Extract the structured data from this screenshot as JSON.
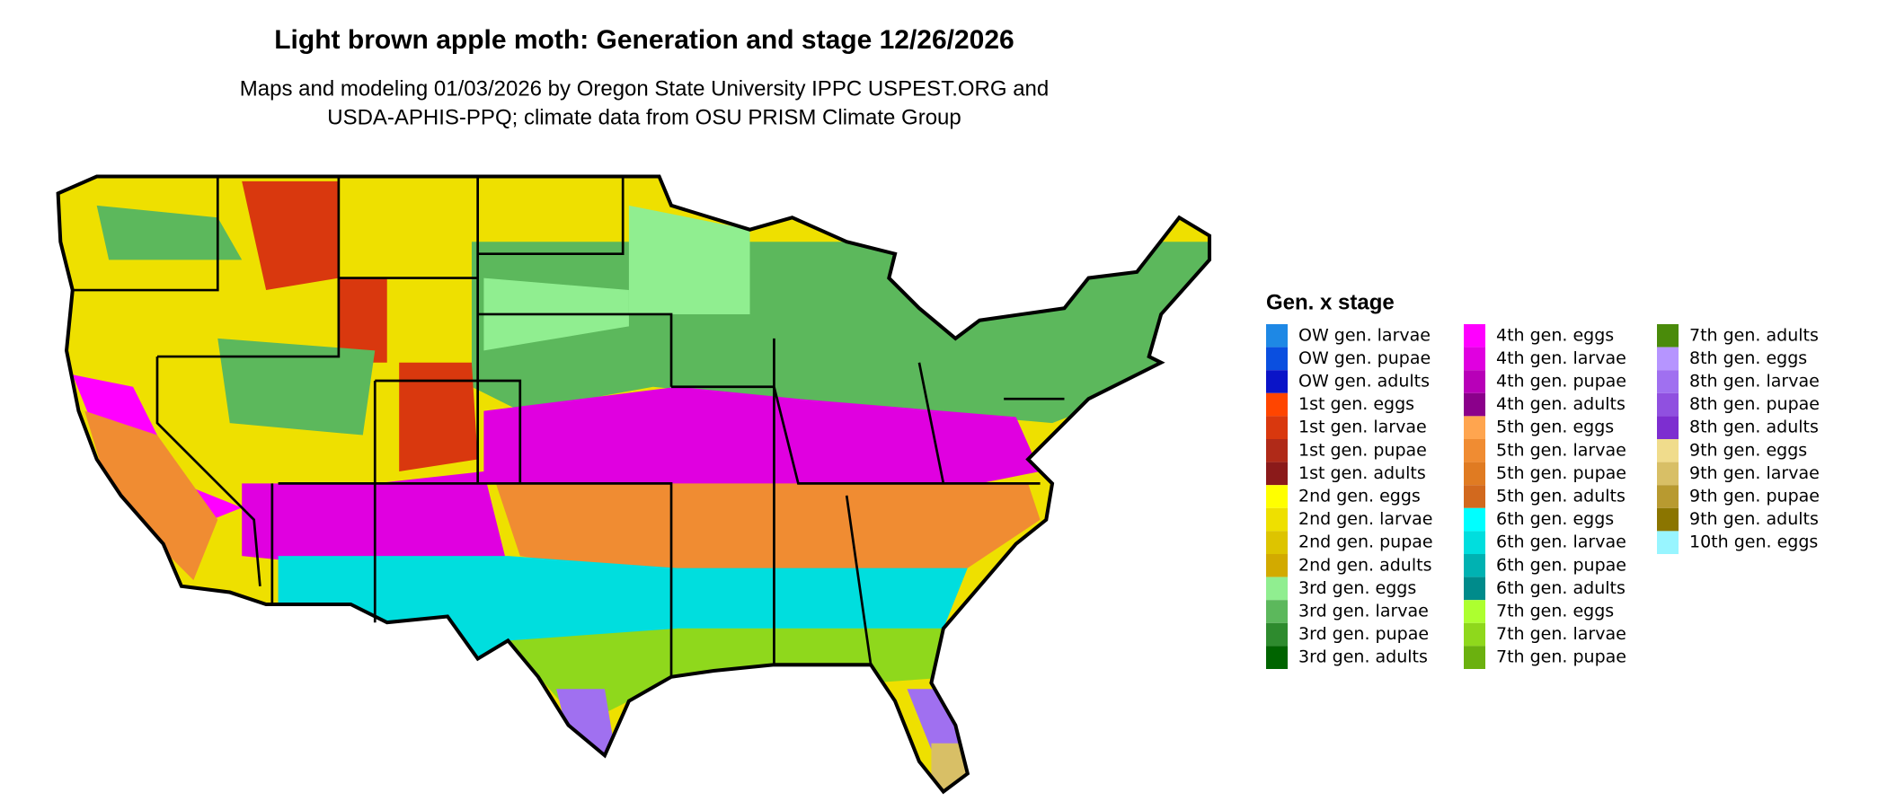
{
  "header": {
    "title": "Light brown apple moth: Generation and stage 12/26/2026",
    "subtitle": [
      "Maps and modeling 01/03/2026 by Oregon State University IPPC USPEST.ORG and",
      "USDA-APHIS-PPQ; climate data from OSU PRISM Climate Group"
    ]
  },
  "legend": {
    "title": "Gen. x stage",
    "items": [
      {
        "label": "OW gen. larvae",
        "color": "#1e88e5"
      },
      {
        "label": "OW gen. pupae",
        "color": "#0a4fe0"
      },
      {
        "label": "OW gen. adults",
        "color": "#0a14c8"
      },
      {
        "label": "1st gen. eggs",
        "color": "#ff4500"
      },
      {
        "label": "1st gen. larvae",
        "color": "#d9380e"
      },
      {
        "label": "1st gen. pupae",
        "color": "#b02a18"
      },
      {
        "label": "1st gen. adults",
        "color": "#8b1a1a"
      },
      {
        "label": "2nd gen. eggs",
        "color": "#ffff00"
      },
      {
        "label": "2nd gen. larvae",
        "color": "#eee000"
      },
      {
        "label": "2nd gen. pupae",
        "color": "#ddc400"
      },
      {
        "label": "2nd gen. adults",
        "color": "#d2aa00"
      },
      {
        "label": "3rd gen. eggs",
        "color": "#90ee90"
      },
      {
        "label": "3rd gen. larvae",
        "color": "#5cb85c"
      },
      {
        "label": "3rd gen. pupae",
        "color": "#2e8b2e"
      },
      {
        "label": "3rd gen. adults",
        "color": "#006400"
      },
      {
        "label": "4th gen. eggs",
        "color": "#ff00ff"
      },
      {
        "label": "4th gen. larvae",
        "color": "#e000e0"
      },
      {
        "label": "4th gen. pupae",
        "color": "#b800b8"
      },
      {
        "label": "4th gen. adults",
        "color": "#8b008b"
      },
      {
        "label": "5th gen. eggs",
        "color": "#ffa54f"
      },
      {
        "label": "5th gen. larvae",
        "color": "#f08c32"
      },
      {
        "label": "5th gen. pupae",
        "color": "#e07b22"
      },
      {
        "label": "5th gen. adults",
        "color": "#d2691e"
      },
      {
        "label": "6th gen. eggs",
        "color": "#00ffff"
      },
      {
        "label": "6th gen. larvae",
        "color": "#00dede"
      },
      {
        "label": "6th gen. pupae",
        "color": "#00b2b2"
      },
      {
        "label": "6th gen. adults",
        "color": "#008b8b"
      },
      {
        "label": "7th gen. eggs",
        "color": "#adff2f"
      },
      {
        "label": "7th gen. larvae",
        "color": "#8fd81c"
      },
      {
        "label": "7th gen. pupae",
        "color": "#6bb10f"
      },
      {
        "label": "7th gen. adults",
        "color": "#4a8b0a"
      },
      {
        "label": "8th gen. eggs",
        "color": "#b695ff"
      },
      {
        "label": "8th gen. larvae",
        "color": "#a070f0"
      },
      {
        "label": "8th gen. pupae",
        "color": "#9050e0"
      },
      {
        "label": "8th gen. adults",
        "color": "#7d2ed0"
      },
      {
        "label": "9th gen. eggs",
        "color": "#f0dc8c"
      },
      {
        "label": "9th gen. larvae",
        "color": "#d8bf66"
      },
      {
        "label": "9th gen. pupae",
        "color": "#b89a30"
      },
      {
        "label": "9th gen. adults",
        "color": "#8b7500"
      },
      {
        "label": "10th gen. eggs",
        "color": "#98f5ff"
      }
    ]
  }
}
